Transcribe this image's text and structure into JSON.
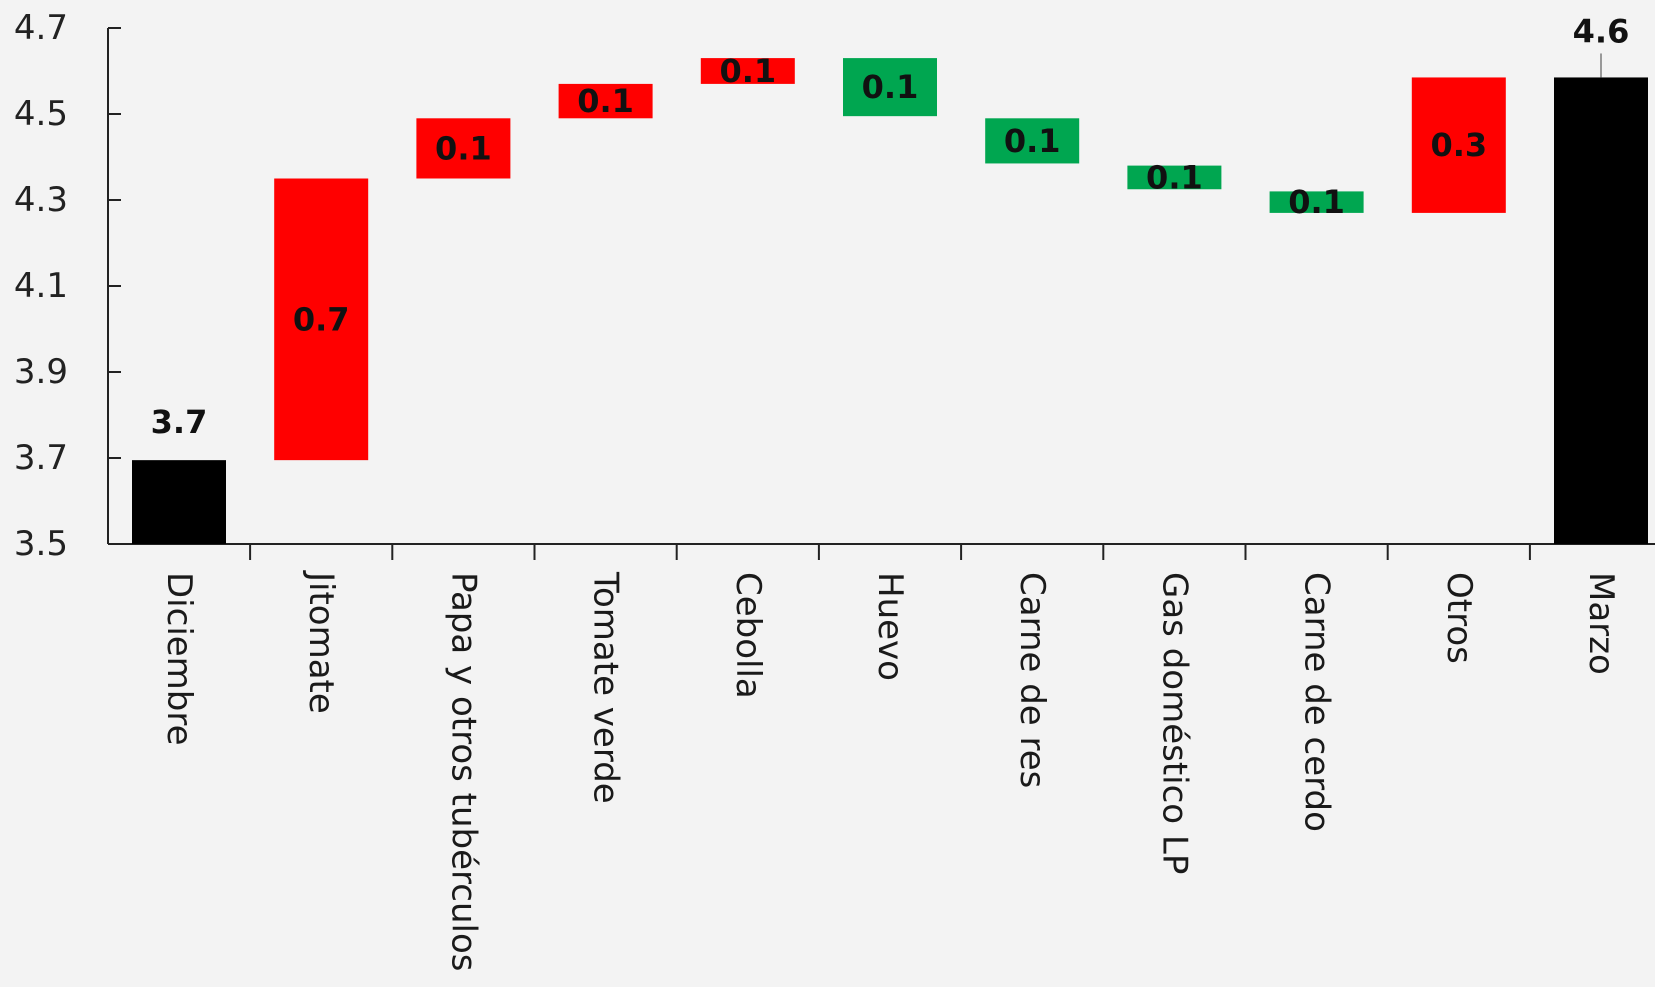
{
  "chart_data": {
    "type": "bar",
    "subtype": "waterfall",
    "title": "",
    "xlabel": "",
    "ylabel": "",
    "ylim": [
      3.5,
      4.7
    ],
    "yticks": [
      "3.5",
      "3.7",
      "3.9",
      "4.1",
      "4.3",
      "4.5",
      "4.7"
    ],
    "ytick_values": [
      3.5,
      3.7,
      3.9,
      4.1,
      4.3,
      4.5,
      4.7
    ],
    "grid": false,
    "categories": [
      "Diciembre",
      "Jitomate",
      "Papa y otros tubérculos",
      "Tomate verde",
      "Cebolla",
      "Huevo",
      "Carne de res",
      "Gas doméstico LP",
      "Carne de cerdo",
      "Otros",
      "Marzo"
    ],
    "bars": [
      {
        "kind": "total",
        "start": 3.5,
        "end": 3.695,
        "label": "3.7",
        "color": "#000000"
      },
      {
        "kind": "increase",
        "start": 3.695,
        "end": 4.35,
        "label": "0.7",
        "color": "#ff0000"
      },
      {
        "kind": "increase",
        "start": 4.35,
        "end": 4.49,
        "label": "0.1",
        "color": "#ff0000"
      },
      {
        "kind": "increase",
        "start": 4.49,
        "end": 4.57,
        "label": "0.1",
        "color": "#ff0000"
      },
      {
        "kind": "increase",
        "start": 4.57,
        "end": 4.63,
        "label": "0.1",
        "color": "#ff0000"
      },
      {
        "kind": "decrease",
        "start": 4.63,
        "end": 4.495,
        "label": "0.1",
        "color": "#00a650"
      },
      {
        "kind": "decrease",
        "start": 4.49,
        "end": 4.385,
        "label": "0.1",
        "color": "#00a650"
      },
      {
        "kind": "decrease",
        "start": 4.38,
        "end": 4.325,
        "label": "0.1",
        "color": "#00a650"
      },
      {
        "kind": "decrease",
        "start": 4.32,
        "end": 4.27,
        "label": "0.1",
        "color": "#00a650"
      },
      {
        "kind": "increase",
        "start": 4.27,
        "end": 4.585,
        "label": "0.3",
        "color": "#ff0000"
      },
      {
        "kind": "total",
        "start": 3.5,
        "end": 4.585,
        "label": "4.6",
        "color": "#000000"
      }
    ],
    "colors": {
      "increase": "#ff0000",
      "decrease": "#00a650",
      "total": "#000000",
      "axis": "#222222",
      "background": "#f3f3f3"
    }
  }
}
